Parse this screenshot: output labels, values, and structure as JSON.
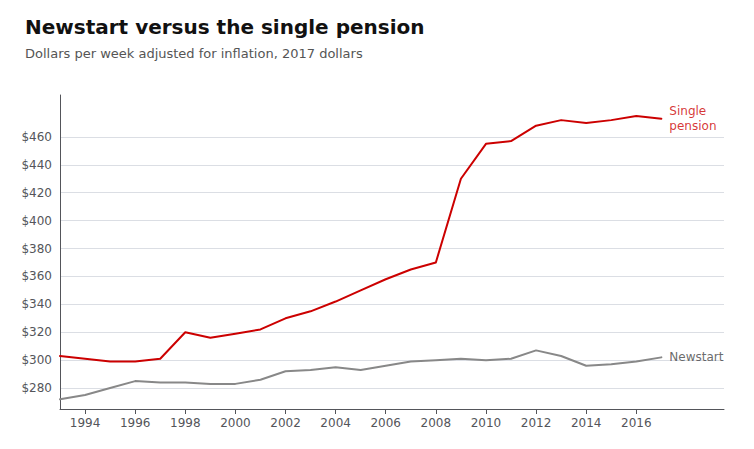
{
  "chart_data": {
    "type": "line",
    "title": "Newstart versus the single pension",
    "subtitle": "Dollars per week adjusted for inflation, 2017 dollars",
    "x": [
      1993,
      1994,
      1995,
      1996,
      1997,
      1998,
      1999,
      2000,
      2001,
      2002,
      2003,
      2004,
      2005,
      2006,
      2007,
      2008,
      2009,
      2010,
      2011,
      2012,
      2013,
      2014,
      2015,
      2016,
      2017
    ],
    "series": [
      {
        "color": "#cc0000",
        "values": [
          303,
          301,
          299,
          299,
          301,
          320,
          316,
          319,
          322,
          330,
          335,
          342,
          350,
          358,
          365,
          370,
          430,
          455,
          457,
          468,
          472,
          470,
          472,
          475,
          473
        ]
      },
      {
        "color": "#888888",
        "values": [
          272,
          275,
          280,
          285,
          284,
          284,
          283,
          283,
          286,
          292,
          293,
          295,
          293,
          296,
          299,
          300,
          301,
          300,
          301,
          307,
          303,
          296,
          297,
          299,
          302
        ]
      }
    ],
    "xlim": [
      1993,
      2019.5
    ],
    "xticks": [
      1994,
      1996,
      1998,
      2000,
      2002,
      2004,
      2006,
      2008,
      2010,
      2012,
      2014,
      2016
    ],
    "ylim": [
      265,
      490
    ],
    "yticks": [
      {
        "value": 280,
        "label": "$280"
      },
      {
        "value": 300,
        "label": "$300"
      },
      {
        "value": 320,
        "label": "$320"
      },
      {
        "value": 340,
        "label": "$340"
      },
      {
        "value": 360,
        "label": "$360"
      },
      {
        "value": 380,
        "label": "$380"
      },
      {
        "value": 400,
        "label": "$400"
      },
      {
        "value": 420,
        "label": "$420"
      },
      {
        "value": 440,
        "label": "$440"
      },
      {
        "value": 460,
        "label": "$460"
      }
    ],
    "grid": true,
    "annotations": [
      {
        "text": "Single\npension",
        "x": 2017,
        "y": 473,
        "color": "#cc0000"
      },
      {
        "text": "Newstart",
        "x": 2017,
        "y": 302,
        "color": "#444444"
      }
    ]
  }
}
